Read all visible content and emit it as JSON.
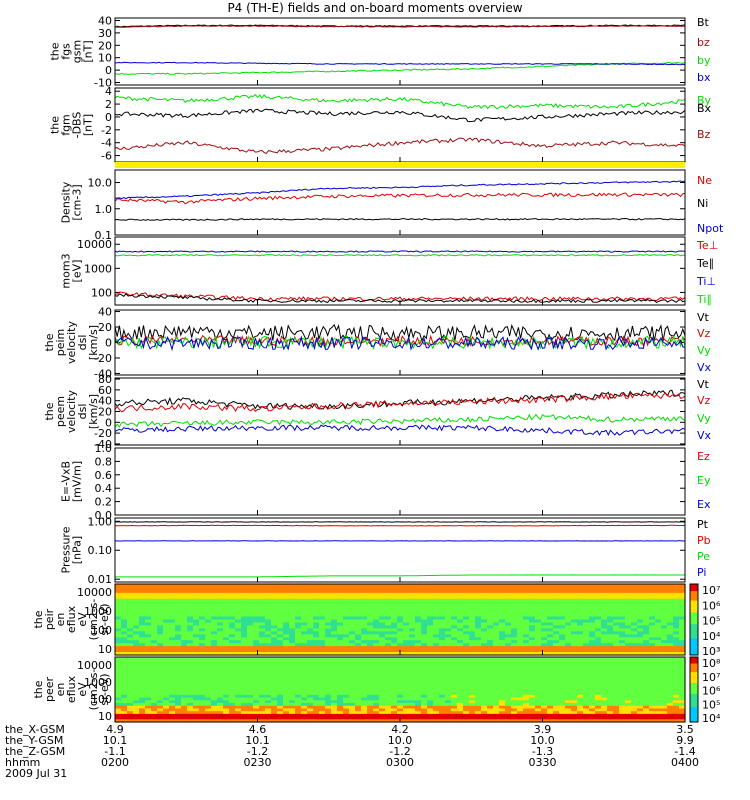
{
  "title": "P4 (TH-E) fields and on-board moments overview",
  "colors": {
    "black": "#000000",
    "red": "#e00000",
    "darkred": "#9b1010",
    "green": "#00e000",
    "blue": "#0000d0",
    "yellow": "#ffee00"
  },
  "chart_data": [
    {
      "type": "line",
      "id": "fgs",
      "ylabel": [
        "the",
        "fgs",
        "gsm",
        "[nT]"
      ],
      "yticks": [
        "40",
        "30",
        "20",
        "10",
        "0",
        "-10"
      ],
      "ylim": [
        -12,
        42
      ],
      "series": [
        {
          "name": "Bt",
          "color": "#000000",
          "values": [
            35,
            36,
            36,
            35.5,
            35.5,
            35.5,
            35.5,
            36,
            36
          ]
        },
        {
          "name": "bz",
          "color": "#9b1010",
          "values": [
            34.5,
            35.5,
            35.5,
            35,
            35,
            35,
            35,
            35.5,
            35.5
          ]
        },
        {
          "name": "by",
          "color": "#00e000",
          "values": [
            -3,
            -3,
            -2,
            -1,
            0,
            1,
            3,
            5,
            6
          ]
        },
        {
          "name": "bx",
          "color": "#0000d0",
          "values": [
            6,
            6,
            5.5,
            5,
            5,
            5,
            5,
            5,
            4.5
          ]
        }
      ]
    },
    {
      "type": "line",
      "id": "fgm-dsl",
      "ylabel": [
        "the",
        "fgm",
        "-DBS",
        "[nT]"
      ],
      "yticks": [
        "4",
        "2",
        "0",
        "-2",
        "-4",
        "-6"
      ],
      "ylim": [
        -7,
        4.5
      ],
      "series": [
        {
          "name": "By",
          "color": "#00e000",
          "values": [
            3,
            2.5,
            3.2,
            2.5,
            2.8,
            1.5,
            1.8,
            1.5,
            2.5
          ]
        },
        {
          "name": "Bx",
          "color": "#000000",
          "values": [
            0.5,
            0.2,
            1,
            0.5,
            0.8,
            -0.5,
            0,
            0.5,
            0.8
          ]
        },
        {
          "name": "Bz",
          "color": "#9b1010",
          "values": [
            -5,
            -4,
            -5.5,
            -5,
            -4,
            -3.5,
            -4.5,
            -4,
            -4.5
          ]
        }
      ]
    },
    {
      "type": "line",
      "id": "density",
      "log": true,
      "ylabel": [
        "Density",
        "[cm-3]"
      ],
      "yticks": [
        "10.0",
        "1.0",
        "0.1"
      ],
      "ylim": [
        0.1,
        30
      ],
      "series": [
        {
          "name": "Ne",
          "color": "#e00000",
          "values": [
            2.2,
            1.8,
            2.5,
            3.0,
            3.2,
            3.4,
            3.4,
            3.5,
            3.4
          ]
        },
        {
          "name": "Ni",
          "color": "#000000",
          "values": [
            0.38,
            0.38,
            0.4,
            0.4,
            0.4,
            0.4,
            0.4,
            0.4,
            0.4
          ]
        },
        {
          "name": "Npot",
          "color": "#0000d0",
          "values": [
            2.5,
            3.0,
            4.0,
            6.0,
            6.5,
            8.0,
            9.0,
            10.0,
            11.0
          ]
        }
      ]
    },
    {
      "type": "line",
      "id": "temp",
      "log": true,
      "ylabel": [
        "mom3",
        "[eV]"
      ],
      "yticks": [
        "10000",
        "1000",
        "100"
      ],
      "ylim": [
        30,
        20000
      ],
      "series": [
        {
          "name": "Te⊥",
          "color": "#e00000",
          "values": [
            90,
            70,
            55,
            55,
            55,
            55,
            55,
            55,
            55
          ]
        },
        {
          "name": "Te∥",
          "color": "#000000",
          "values": [
            80,
            60,
            45,
            45,
            45,
            45,
            45,
            45,
            45
          ]
        },
        {
          "name": "Ti⊥",
          "color": "#0000d0",
          "values": [
            5000,
            5000,
            5000,
            5000,
            5000,
            5000,
            5000,
            5000,
            5000
          ]
        },
        {
          "name": "Ti∥",
          "color": "#00e000",
          "values": [
            3500,
            3500,
            3500,
            3500,
            3500,
            3500,
            3500,
            3500,
            3500
          ]
        }
      ]
    },
    {
      "type": "line",
      "id": "peim-v",
      "ylabel": [
        "the",
        "peim",
        "velocity",
        "dsl",
        "[km/s]"
      ],
      "yticks": [
        "40",
        "20",
        "0",
        "-20",
        "-40"
      ],
      "ylim": [
        -42,
        42
      ],
      "series": [
        {
          "name": "Vt",
          "color": "#000000",
          "values": [
            12,
            15,
            12,
            13,
            12,
            12,
            12,
            12,
            12
          ]
        },
        {
          "name": "Vz",
          "color": "#e00000",
          "values": [
            2,
            3,
            2,
            2,
            2,
            2,
            2,
            2,
            2
          ]
        },
        {
          "name": "Vy",
          "color": "#00e000",
          "values": [
            0,
            0,
            0,
            0,
            0,
            0,
            0,
            0,
            0
          ]
        },
        {
          "name": "Vx",
          "color": "#0000d0",
          "values": [
            -1,
            -1,
            -1,
            -1,
            -1,
            -1,
            -1,
            -1,
            -1
          ]
        }
      ]
    },
    {
      "type": "line",
      "id": "peem-v",
      "ylabel": [
        "the",
        "peem",
        "velocity",
        "dsl",
        "[km/s]"
      ],
      "yticks": [
        "80",
        "60",
        "40",
        "20",
        "0",
        "-20",
        "-40"
      ],
      "ylim": [
        -42,
        82
      ],
      "series": [
        {
          "name": "Vt",
          "color": "#000000",
          "values": [
            35,
            40,
            30,
            30,
            35,
            40,
            45,
            50,
            55
          ]
        },
        {
          "name": "Vz",
          "color": "#e00000",
          "values": [
            25,
            30,
            25,
            30,
            35,
            38,
            42,
            48,
            50
          ]
        },
        {
          "name": "Vy",
          "color": "#00e000",
          "values": [
            -5,
            -2,
            0,
            0,
            2,
            5,
            10,
            5,
            8
          ]
        },
        {
          "name": "Vx",
          "color": "#0000d0",
          "values": [
            -15,
            -12,
            -10,
            -10,
            -10,
            -10,
            -15,
            -20,
            -15
          ]
        }
      ]
    },
    {
      "type": "line",
      "id": "exb",
      "ylabel": [
        "E=-VxB",
        "[mV/m]"
      ],
      "yticks": [
        "1.0",
        "0.8",
        "0.6",
        "0.4",
        "0.2",
        "0.0"
      ],
      "ylim": [
        0,
        1
      ],
      "series": [
        {
          "name": "Ez",
          "color": "#e00000",
          "values": []
        },
        {
          "name": "Ey",
          "color": "#00e000",
          "values": []
        },
        {
          "name": "Ex",
          "color": "#0000d0",
          "values": []
        }
      ]
    },
    {
      "type": "line",
      "id": "pressure",
      "log": true,
      "ylabel": [
        "Pressure",
        "[nPa]"
      ],
      "yticks": [
        "1.00",
        "0.10",
        "0.01"
      ],
      "ylim": [
        0.008,
        1.3
      ],
      "series": [
        {
          "name": "Pt",
          "color": "#000000",
          "values": [
            0.95,
            0.95,
            0.95,
            0.95,
            0.95,
            0.95,
            0.95,
            0.95,
            0.95
          ]
        },
        {
          "name": "Pb",
          "color": "#e00000",
          "values": [
            0.7,
            0.72,
            0.72,
            0.7,
            0.7,
            0.7,
            0.7,
            0.72,
            0.72
          ]
        },
        {
          "name": "Pe",
          "color": "#00e000",
          "values": [
            0.012,
            0.012,
            0.012,
            0.013,
            0.013,
            0.014,
            0.014,
            0.014,
            0.014
          ]
        },
        {
          "name": "Pi",
          "color": "#0000d0",
          "values": [
            0.21,
            0.21,
            0.21,
            0.21,
            0.21,
            0.21,
            0.21,
            0.21,
            0.21
          ]
        }
      ]
    },
    {
      "type": "heatmap",
      "id": "peir",
      "ylabel": [
        "the",
        "peir",
        "en",
        "eflux",
        "eV",
        "(cm2-s-",
        "sr-eV)"
      ],
      "yticks": [
        "10000",
        "1000",
        "100",
        "10"
      ],
      "colorbar_ticks": [
        "10⁷",
        "10⁶",
        "10⁵",
        "10⁴",
        "10³"
      ]
    },
    {
      "type": "heatmap",
      "id": "peer",
      "ylabel": [
        "the",
        "peer",
        "en",
        "eflux",
        "eV",
        "(cm2-s-",
        "sr-eV)"
      ],
      "yticks": [
        "10000",
        "1000",
        "100",
        "10"
      ],
      "colorbar_ticks": [
        "10⁸",
        "10⁷",
        "10⁶",
        "10⁵",
        "10⁴"
      ]
    }
  ],
  "ephemeris": {
    "rows": [
      {
        "label": "the_X-GSM",
        "values": [
          "4.9",
          "4.6",
          "4.2",
          "3.9",
          "3.5"
        ]
      },
      {
        "label": "the_Y-GSM",
        "values": [
          "10.1",
          "10.1",
          "10.0",
          "10.0",
          "9.9"
        ]
      },
      {
        "label": "the_Z-GSM",
        "values": [
          "-1.1",
          "-1.2",
          "-1.2",
          "-1.3",
          "-1.4"
        ]
      },
      {
        "label": "hhmm",
        "values": [
          "0200",
          "0230",
          "0300",
          "0330",
          "0400"
        ]
      }
    ],
    "date": "2009 Jul 31"
  }
}
